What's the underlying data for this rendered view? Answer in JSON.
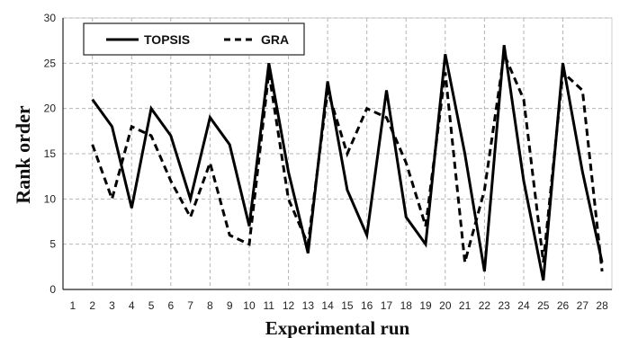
{
  "chart_data": {
    "type": "line",
    "title": "",
    "xlabel": "Experimental run",
    "ylabel": "Rank order",
    "x": [
      1,
      2,
      3,
      4,
      5,
      6,
      7,
      8,
      9,
      10,
      11,
      12,
      13,
      14,
      15,
      16,
      17,
      18,
      19,
      20,
      21,
      22,
      23,
      24,
      25,
      26,
      27,
      28
    ],
    "xlim": [
      0.5,
      28.5
    ],
    "ylim": [
      0,
      30
    ],
    "yticks": [
      0,
      5,
      10,
      15,
      20,
      25,
      30
    ],
    "grid": true,
    "legend_position": "top-left",
    "series": [
      {
        "name": "TOPSIS",
        "style": "solid",
        "color": "#000000",
        "values": [
          null,
          21,
          18,
          9,
          20,
          17,
          10,
          19,
          16,
          7,
          25,
          13,
          4,
          23,
          11,
          6,
          22,
          8,
          5,
          26,
          15,
          2,
          27,
          12,
          1,
          25,
          13,
          3
        ]
      },
      {
        "name": "GRA",
        "style": "dashed",
        "color": "#000000",
        "values": [
          null,
          16,
          10,
          18,
          17,
          12,
          8,
          14,
          6,
          5,
          24,
          10,
          5,
          22,
          15,
          20,
          19,
          14,
          7,
          24,
          3,
          11,
          26,
          21,
          3,
          24,
          22,
          2
        ]
      }
    ]
  }
}
